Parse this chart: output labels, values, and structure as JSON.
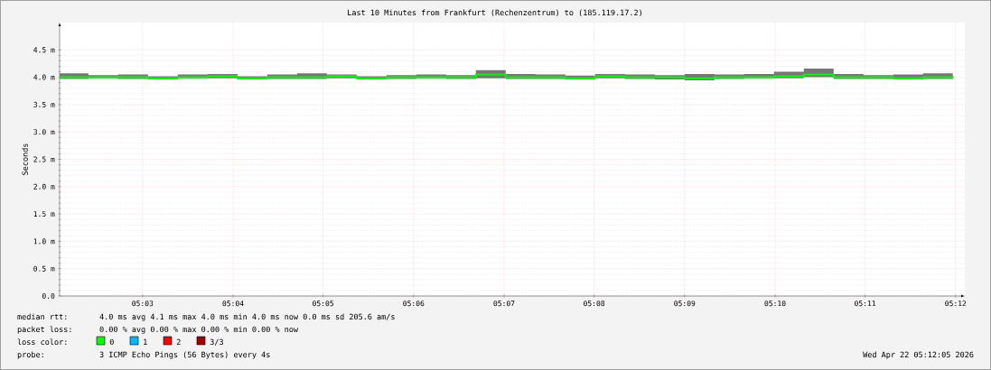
{
  "chart_data": {
    "type": "step",
    "title": "Last 10 Minutes from Frankfurt (Rechenzentrum) to (185.119.17.2)",
    "ylabel": "Seconds",
    "xlim": [
      5.0347,
      5.2017
    ],
    "ylim": [
      0,
      5
    ],
    "xticks": [
      {
        "value": 5.05,
        "label": "05:03"
      },
      {
        "value": 5.0667,
        "label": "05:04"
      },
      {
        "value": 5.0833,
        "label": "05:05"
      },
      {
        "value": 5.1,
        "label": "05:06"
      },
      {
        "value": 5.1167,
        "label": "05:07"
      },
      {
        "value": 5.1333,
        "label": "05:08"
      },
      {
        "value": 5.15,
        "label": "05:09"
      },
      {
        "value": 5.1667,
        "label": "05:10"
      },
      {
        "value": 5.1833,
        "label": "05:11"
      },
      {
        "value": 5.2,
        "label": "05:12"
      }
    ],
    "yticks": [
      {
        "value": 0,
        "label": "0.0"
      },
      {
        "value": 0.5,
        "label": "0.5 m"
      },
      {
        "value": 1,
        "label": "1.0 m"
      },
      {
        "value": 1.5,
        "label": "1.5 m"
      },
      {
        "value": 2,
        "label": "2.0 m"
      },
      {
        "value": 2.5,
        "label": "2.5 m"
      },
      {
        "value": 3,
        "label": "3.0 m"
      },
      {
        "value": 3.5,
        "label": "3.5 m"
      },
      {
        "value": 4,
        "label": "4.0 m"
      },
      {
        "value": 4.5,
        "label": "4.5 m"
      }
    ],
    "x": [
      5.0347,
      5.04,
      5.0455,
      5.051,
      5.0565,
      5.062,
      5.0675,
      5.073,
      5.0785,
      5.084,
      5.0895,
      5.095,
      5.1005,
      5.106,
      5.1115,
      5.117,
      5.1225,
      5.128,
      5.1335,
      5.139,
      5.1445,
      5.15,
      5.1555,
      5.161,
      5.1665,
      5.172,
      5.1775,
      5.183,
      5.1885,
      5.194,
      5.1995
    ],
    "series": [
      {
        "name": "0",
        "color": "#00ff00",
        "values": [
          4.0,
          4.0,
          4.0,
          3.98,
          4.0,
          4.02,
          3.98,
          4.0,
          4.0,
          4.02,
          3.98,
          4.0,
          4.0,
          4.0,
          4.05,
          4.0,
          4.0,
          3.98,
          4.02,
          4.0,
          4.0,
          3.98,
          4.0,
          4.0,
          4.02,
          4.05,
          4.0,
          4.0,
          3.98,
          4.0,
          4.02
        ],
        "lower": [
          3.97,
          3.98,
          3.97,
          3.96,
          3.98,
          3.98,
          3.96,
          3.97,
          3.97,
          3.98,
          3.96,
          3.97,
          3.98,
          3.97,
          3.98,
          3.97,
          3.97,
          3.96,
          3.98,
          3.97,
          3.96,
          3.94,
          3.97,
          3.98,
          3.98,
          4.0,
          3.97,
          3.97,
          3.96,
          3.97,
          3.98
        ],
        "upper": [
          4.07,
          4.04,
          4.05,
          4.02,
          4.05,
          4.06,
          4.02,
          4.05,
          4.07,
          4.05,
          4.02,
          4.04,
          4.05,
          4.04,
          4.13,
          4.06,
          4.05,
          4.03,
          4.06,
          4.05,
          4.04,
          4.06,
          4.05,
          4.06,
          4.1,
          4.16,
          4.06,
          4.04,
          4.05,
          4.07,
          4.08
        ]
      },
      {
        "name": "1",
        "color": "#00b8ff",
        "values": [
          null,
          null,
          null,
          null,
          null,
          null,
          null,
          null,
          null,
          null,
          null,
          null,
          null,
          null,
          null,
          null,
          null,
          null,
          null,
          null,
          null,
          null,
          null,
          null,
          null,
          null,
          null,
          null,
          null,
          null,
          null
        ]
      },
      {
        "name": "2",
        "color": "#ff0000",
        "values": [
          null,
          null,
          null,
          null,
          null,
          null,
          null,
          null,
          null,
          null,
          null,
          null,
          null,
          null,
          null,
          null,
          null,
          null,
          null,
          null,
          null,
          null,
          null,
          null,
          null,
          null,
          null,
          null,
          null,
          null,
          null
        ]
      },
      {
        "name": "3/3",
        "color": "#a10000",
        "values": [
          null,
          null,
          null,
          null,
          null,
          null,
          null,
          null,
          null,
          null,
          null,
          null,
          null,
          null,
          null,
          null,
          null,
          null,
          null,
          null,
          null,
          null,
          null,
          null,
          null,
          null,
          null,
          null,
          null,
          null,
          null
        ]
      }
    ],
    "legend_title": "loss color:",
    "grid": true,
    "legend": "bottom left",
    "annotations": [
      "median rtt:",
      "4.0 ms avg  4.1 ms max  4.0 ms min  4.0 ms now  0.0 ms sd  205.6  am/s",
      "packet loss:",
      "0.00 % avg  0.00 % max  0.00 % min  0.00 % now",
      "probe:",
      "3 ICMP Echo Pings (56 Bytes) every 4s",
      "Wed Apr 22 05:12:05 2026"
    ]
  }
}
